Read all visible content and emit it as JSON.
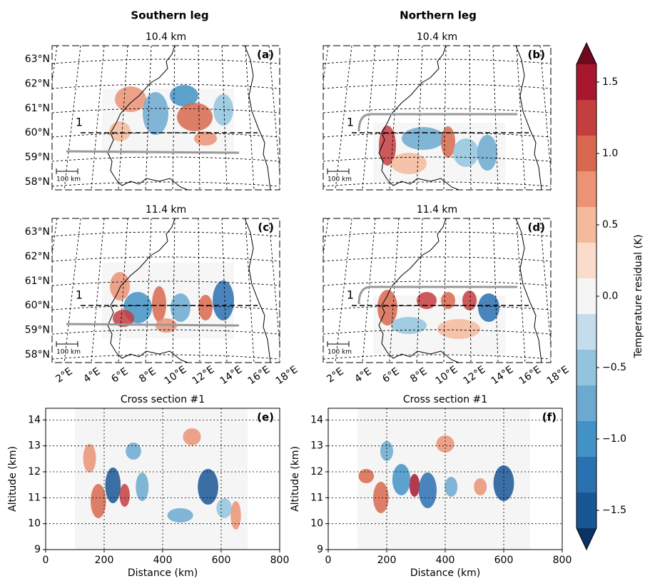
{
  "columns": [
    "Southern leg",
    "Northern leg"
  ],
  "maps": [
    {
      "title": "10.4 km",
      "label": "(a)"
    },
    {
      "title": "10.4 km",
      "label": "(b)"
    },
    {
      "title": "11.4 km",
      "label": "(c)"
    },
    {
      "title": "11.4 km",
      "label": "(d)"
    }
  ],
  "map_lat_labels": [
    "63°N",
    "62°N",
    "61°N",
    "60°N",
    "59°N",
    "58°N"
  ],
  "map_lon_labels": [
    "2°E",
    "4°E",
    "6°E",
    "8°E",
    "10°E",
    "12°E",
    "14°E",
    "16°E",
    "18°E"
  ],
  "scale_label": "100 km",
  "section_label": "1",
  "cross_sections": [
    {
      "title": "Cross section #1",
      "label": "(e)"
    },
    {
      "title": "Cross section #1",
      "label": "(f)"
    }
  ],
  "cross_section_axes": {
    "xlabel": "Distance (km)",
    "ylabel": "Altitude (km)",
    "xlim": [
      0,
      800
    ],
    "xticks": [
      0,
      200,
      400,
      600,
      800
    ],
    "ylim": [
      9,
      14.45
    ],
    "yticks": [
      9,
      10,
      11,
      12,
      13,
      14
    ],
    "grid": true
  },
  "colorbar": {
    "label": "Temperature residual (K)",
    "lim": [
      -1.625,
      1.625
    ],
    "ticks": [
      {
        "value": -1.5,
        "label": "−1.5"
      },
      {
        "value": -1.0,
        "label": "−1.0"
      },
      {
        "value": -0.5,
        "label": "−0.5"
      },
      {
        "value": 0,
        "label": "0.0"
      },
      0.5,
      {
        "value": 1.0,
        "label": "1.0"
      },
      1.5
    ],
    "colors": [
      "#195696",
      "#2a71b2",
      "#4292c6",
      "#6ba9d0",
      "#93c4de",
      "#c5dcec",
      "#f5f5f5",
      "#fbdccb",
      "#f5b99c",
      "#ea9375",
      "#d8684f",
      "#c43d3f",
      "#a8172e"
    ],
    "extend_colors": [
      "#0b3264",
      "#6e0a1f"
    ]
  }
}
